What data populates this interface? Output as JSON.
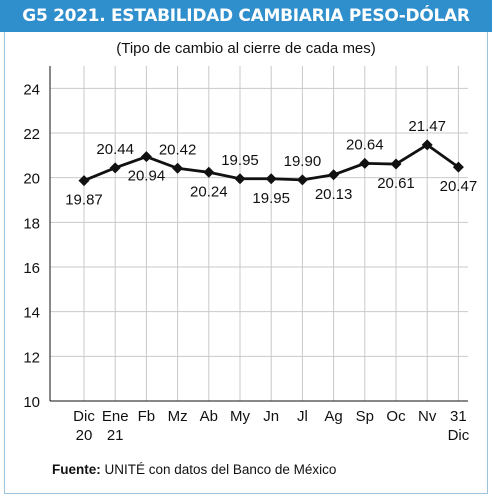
{
  "chart_data": {
    "type": "line",
    "title": "G5 2021. ESTABILIDAD CAMBIARIA PESO-DÓLAR",
    "subtitle": "(Tipo de cambio al cierre de cada mes)",
    "xlabel": "",
    "ylabel": "",
    "ylim": [
      10,
      25
    ],
    "yticks": [
      "10",
      "12",
      "14",
      "16",
      "18",
      "20",
      "22",
      "24"
    ],
    "grid": true,
    "categories": [
      [
        "Dic",
        "20"
      ],
      [
        "Ene",
        "21"
      ],
      [
        "Fb"
      ],
      [
        "Mz"
      ],
      [
        "Ab"
      ],
      [
        "My"
      ],
      [
        "Jn"
      ],
      [
        "Jl"
      ],
      [
        "Ag"
      ],
      [
        "Sp"
      ],
      [
        "Oc"
      ],
      [
        "Nv"
      ],
      [
        "31",
        "Dic"
      ]
    ],
    "values": [
      19.87,
      20.44,
      20.94,
      20.42,
      20.24,
      19.95,
      19.95,
      19.9,
      20.13,
      20.64,
      20.61,
      21.47,
      20.47
    ],
    "value_labels": [
      "19.87",
      "20.44",
      "20.94",
      "20.42",
      "20.24",
      "19.95",
      "19.95",
      "19.90",
      "20.13",
      "20.64",
      "20.61",
      "21.47",
      "20.47"
    ],
    "label_positions": [
      "below",
      "above",
      "below",
      "above",
      "below",
      "above",
      "below",
      "above",
      "below",
      "above",
      "below",
      "above",
      "below"
    ],
    "colors": {
      "line": "#111111",
      "grid": "#c9c9c9",
      "title_bg": "#2f8fcd",
      "frame": "#9ec3df"
    }
  },
  "source": {
    "label": "Fuente:",
    "text": "UNITÉ con datos del Banco de México"
  }
}
